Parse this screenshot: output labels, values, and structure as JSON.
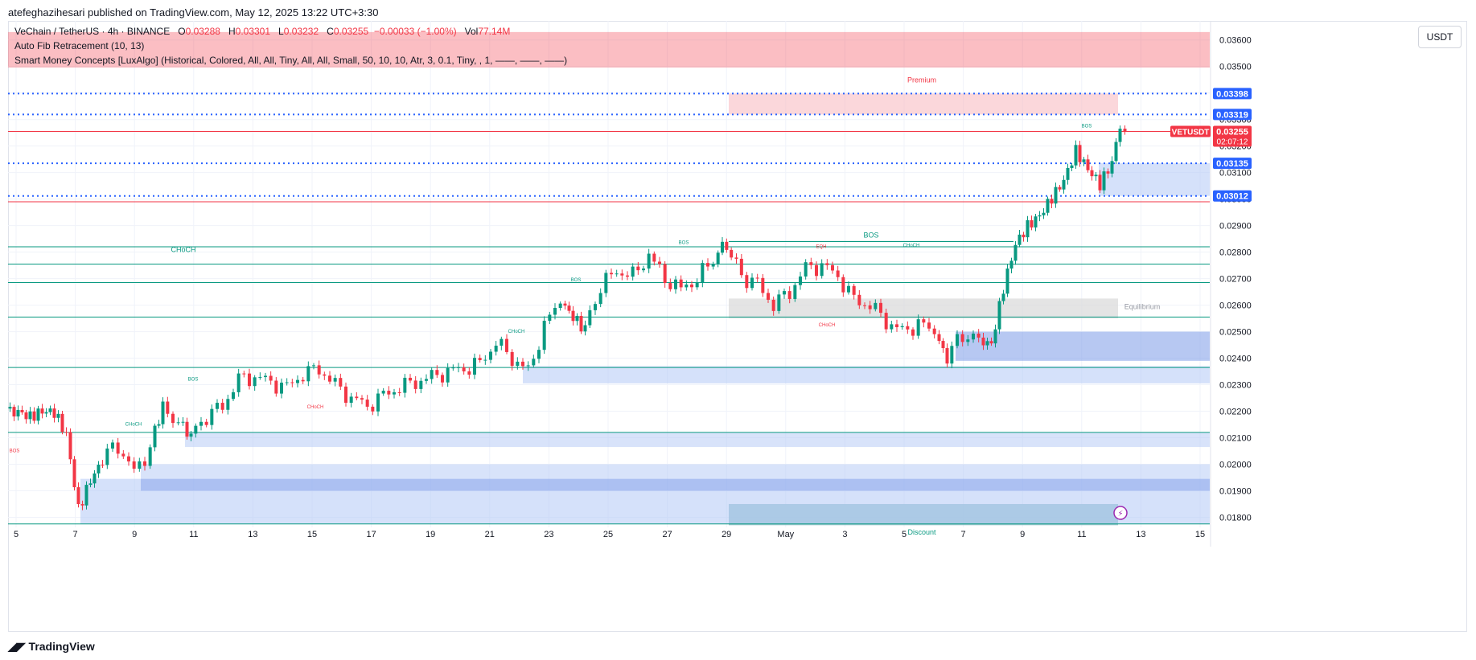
{
  "header": {
    "publisher_line": "atefeghazihesari published on TradingView.com, May 12, 2025 13:22 UTC+3:30"
  },
  "legend": {
    "symbol_line": "VeChain / TetherUS · 4h · BINANCE",
    "o_label": "O",
    "o_value": "0.03288",
    "h_label": "H",
    "h_value": "0.03301",
    "l_label": "L",
    "l_value": "0.03232",
    "c_label": "C",
    "c_value": "0.03255",
    "change": "−0.00033 (−1.00%)",
    "vol_label": "Vol",
    "vol_value": "77.14M",
    "indicator1": "Auto Fib Retracement (10, 13)",
    "indicator2": "Smart Money Concepts [LuxAlgo] (Historical, Colored, All, All, Tiny, All, All, Small, 50, 10, 10, Atr, 3, 0.1, Tiny, , 1, ——, ——, ——)"
  },
  "currency": "USDT",
  "footer": {
    "brand": "TradingView"
  },
  "colors": {
    "up": "#089981",
    "down": "#f23645",
    "zone_blue": "#b2c8f5",
    "zone_blue_dark": "#7b9ae8",
    "premium": "#f7b6bd",
    "equilibrium": "#d9d9d9",
    "discount": "#8fc0c8",
    "fib_line": "#2962ff",
    "axis_text": "#131722",
    "grid": "#f0f3fa"
  },
  "chart_data": {
    "type": "candlestick",
    "y_axis": {
      "min": 0.01762,
      "max": 0.03672,
      "ticks": [
        "0.03600",
        "0.03500",
        "0.03400",
        "0.03300",
        "0.03200",
        "0.03100",
        "0.03000",
        "0.02900",
        "0.02800",
        "0.02700",
        "0.02600",
        "0.02500",
        "0.02400",
        "0.02300",
        "0.02200",
        "0.02100",
        "0.02000",
        "0.01900",
        "0.01800"
      ]
    },
    "x_axis": {
      "ticks": [
        "5",
        "7",
        "9",
        "11",
        "13",
        "15",
        "17",
        "19",
        "21",
        "23",
        "25",
        "27",
        "29",
        "May",
        "3",
        "5",
        "7",
        "9",
        "11",
        "13",
        "15"
      ]
    },
    "last_price": {
      "symbol": "VETUSDT",
      "value": "0.03255",
      "countdown": "02:07:12"
    },
    "fib_levels": [
      "0.03398",
      "0.03319",
      "0.03135",
      "0.03012"
    ],
    "labels": [
      {
        "text": "Premium"
      },
      {
        "text": "Equilibrium"
      },
      {
        "text": "Discount"
      },
      {
        "text": "BOS"
      },
      {
        "text": "CHoCH"
      },
      {
        "text": "EQH"
      }
    ],
    "ohlc_recent": {
      "open": 0.03288,
      "high": 0.03301,
      "low": 0.03232,
      "close": 0.03255
    }
  }
}
